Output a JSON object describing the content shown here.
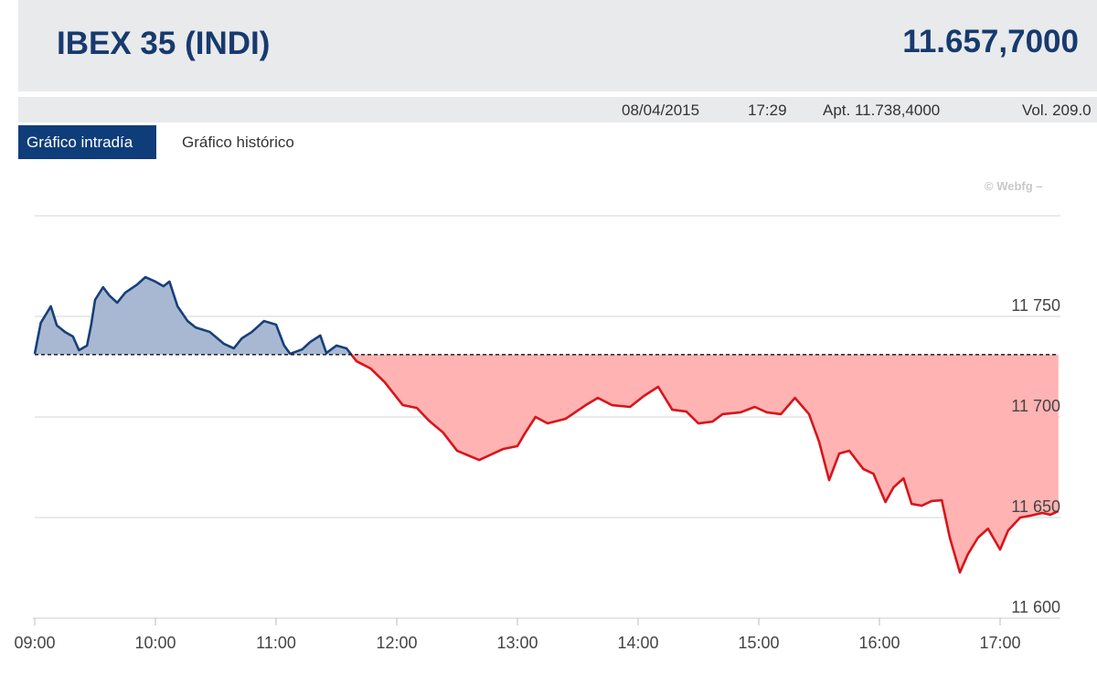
{
  "header": {
    "title": "IBEX 35 (INDI)",
    "price": "11.657,7000"
  },
  "info": {
    "date": "08/04/2015",
    "time": "17:29",
    "open": "Apt. 11.738,4000",
    "volume": "Vol. 209.0"
  },
  "tabs": [
    {
      "label": "Gráfico intradía",
      "active": true
    },
    {
      "label": "Gráfico histórico",
      "active": false
    }
  ],
  "credit": "© Webfg –",
  "colors": {
    "up_line": "#173f7a",
    "up_fill": "#a9b8d2",
    "down_line": "#d9141b",
    "down_fill": "#ffb3b3",
    "tab_active": "#0f3d7a"
  },
  "chart_data": {
    "type": "area",
    "title": "",
    "xlabel": "",
    "ylabel": "",
    "xlim": [
      "09:00",
      "17:29"
    ],
    "ylim": [
      11600,
      11800
    ],
    "grid": true,
    "reference_value": 11731,
    "x_ticks": [
      "09:00",
      "10:00",
      "11:00",
      "12:00",
      "13:00",
      "14:00",
      "15:00",
      "16:00",
      "17:00"
    ],
    "y_ticks": [
      {
        "value": 11750,
        "label": "11 750"
      },
      {
        "value": 11700,
        "label": "11 700"
      },
      {
        "value": 11650,
        "label": "11 650"
      },
      {
        "value": 11600,
        "label": "11 600"
      }
    ],
    "y_gridlines": [
      11800,
      11750,
      11700,
      11650,
      11600
    ],
    "points": [
      [
        "09:00",
        11731.4
      ],
      [
        "09:03",
        11746.8
      ],
      [
        "09:08",
        11755
      ],
      [
        "09:11",
        11745.5
      ],
      [
        "09:15",
        11742.3
      ],
      [
        "09:19",
        11740
      ],
      [
        "09:22",
        11733.2
      ],
      [
        "09:26",
        11735.5
      ],
      [
        "09:28",
        11745.5
      ],
      [
        "09:30",
        11758.2
      ],
      [
        "09:34",
        11764.5
      ],
      [
        "09:37",
        11760.5
      ],
      [
        "09:41",
        11756.8
      ],
      [
        "09:45",
        11761.8
      ],
      [
        "09:51",
        11765.9
      ],
      [
        "09:55",
        11769.5
      ],
      [
        "10:00",
        11767.3
      ],
      [
        "10:04",
        11765
      ],
      [
        "10:07",
        11767.3
      ],
      [
        "10:11",
        11755
      ],
      [
        "10:16",
        11747.7
      ],
      [
        "10:20",
        11744.5
      ],
      [
        "10:27",
        11742.3
      ],
      [
        "10:34",
        11736.4
      ],
      [
        "10:39",
        11734.1
      ],
      [
        "10:43",
        11739.1
      ],
      [
        "10:48",
        11742.3
      ],
      [
        "10:54",
        11747.7
      ],
      [
        "11:00",
        11745.9
      ],
      [
        "11:04",
        11735.5
      ],
      [
        "11:07",
        11731.4
      ],
      [
        "11:13",
        11733.6
      ],
      [
        "11:17",
        11737.3
      ],
      [
        "11:22",
        11740.5
      ],
      [
        "11:25",
        11731.8
      ],
      [
        "11:30",
        11735.5
      ],
      [
        "11:35",
        11734.1
      ],
      [
        "11:40",
        11727.7
      ],
      [
        "11:47",
        11724.1
      ],
      [
        "11:54",
        11717.3
      ],
      [
        "12:03",
        11705.9
      ],
      [
        "12:10",
        11704.5
      ],
      [
        "12:16",
        11698.2
      ],
      [
        "12:23",
        11692.3
      ],
      [
        "12:30",
        11683.2
      ],
      [
        "12:41",
        11678.6
      ],
      [
        "12:53",
        11684.1
      ],
      [
        "13:00",
        11685.5
      ],
      [
        "13:04",
        11692.3
      ],
      [
        "13:09",
        11700
      ],
      [
        "13:15",
        11696.8
      ],
      [
        "13:24",
        11699.1
      ],
      [
        "13:34",
        11705.9
      ],
      [
        "13:40",
        11709.5
      ],
      [
        "13:47",
        11705.9
      ],
      [
        "13:56",
        11705
      ],
      [
        "14:03",
        11710.5
      ],
      [
        "14:10",
        11715
      ],
      [
        "14:17",
        11703.6
      ],
      [
        "14:24",
        11702.7
      ],
      [
        "14:30",
        11696.8
      ],
      [
        "14:37",
        11697.7
      ],
      [
        "14:42",
        11701.4
      ],
      [
        "14:51",
        11702.3
      ],
      [
        "14:58",
        11705
      ],
      [
        "15:04",
        11702.3
      ],
      [
        "15:11",
        11701.4
      ],
      [
        "15:18",
        11709.5
      ],
      [
        "15:25",
        11701.4
      ],
      [
        "15:30",
        11687.7
      ],
      [
        "15:35",
        11668.6
      ],
      [
        "15:40",
        11681.8
      ],
      [
        "15:45",
        11683.2
      ],
      [
        "15:52",
        11674.1
      ],
      [
        "15:57",
        11671.8
      ],
      [
        "16:03",
        11657.7
      ],
      [
        "16:07",
        11665
      ],
      [
        "16:12",
        11669.5
      ],
      [
        "16:16",
        11656.8
      ],
      [
        "16:21",
        11655.9
      ],
      [
        "16:26",
        11658.2
      ],
      [
        "16:31",
        11658.6
      ],
      [
        "16:35",
        11640
      ],
      [
        "16:40",
        11622.7
      ],
      [
        "16:44",
        11631.8
      ],
      [
        "16:49",
        11640
      ],
      [
        "16:54",
        11644.5
      ],
      [
        "17:00",
        11634.1
      ],
      [
        "17:04",
        11643.6
      ],
      [
        "17:10",
        11650
      ],
      [
        "17:15",
        11650.9
      ],
      [
        "17:21",
        11652.3
      ],
      [
        "17:25",
        11651.4
      ],
      [
        "17:29",
        11653.2
      ]
    ]
  }
}
